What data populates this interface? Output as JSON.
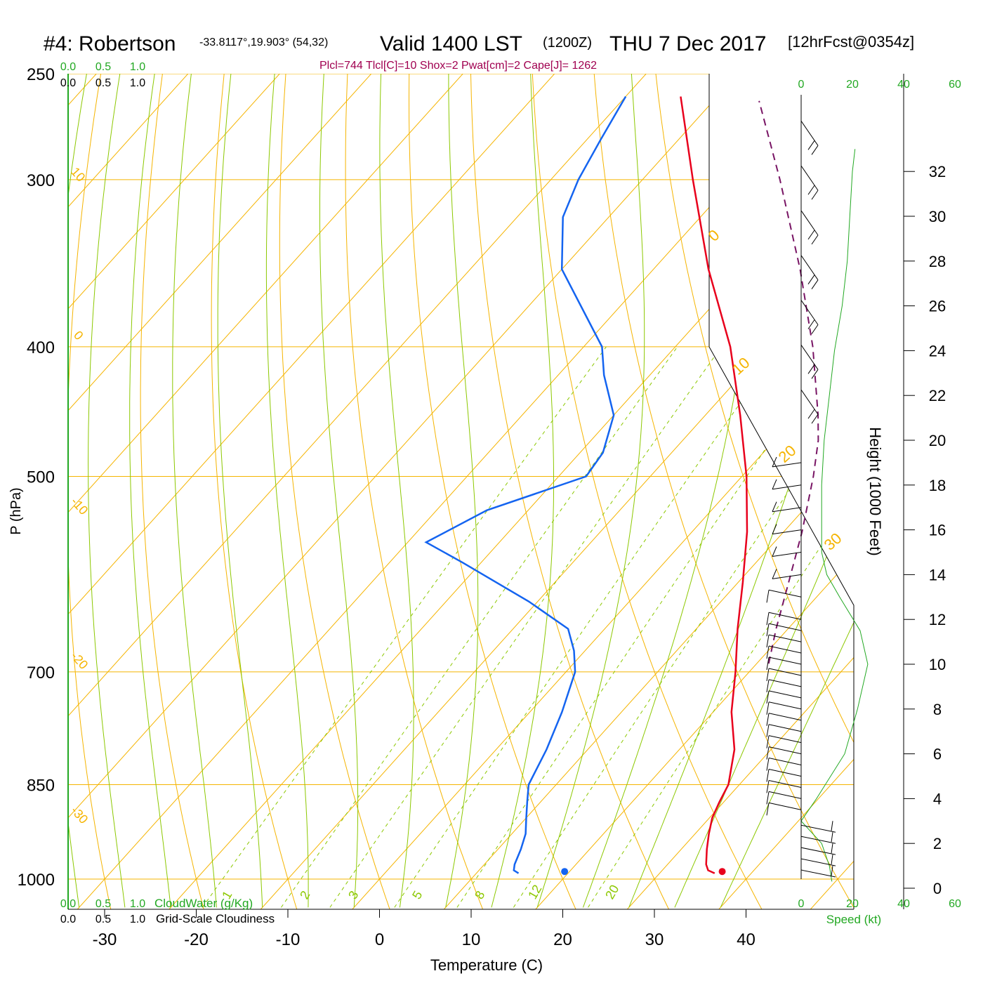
{
  "header": {
    "station": "#4: Robertson",
    "coords": "-33.8117°,19.903° (54,32)",
    "valid": "Valid 1400 LST",
    "zulu": "(1200Z)",
    "date": "THU 7 Dec 2017",
    "forecast": "[12hrFcst@0354z]",
    "indices": "Plcl=744 Tlcl[C]=10 Shox=2 Pwat[cm]=2 Cape[J]= 1262"
  },
  "chart_data": {
    "type": "skewt",
    "xlabel": "Temperature (C)",
    "ylabel": "P (hPa)",
    "right_label": "Height (1000 Feet)",
    "speed_label": "Speed (kt)",
    "cloudwater_label": "CloudWater (g/Kg)",
    "cloudiness_label": "Grid-Scale Cloudiness",
    "x_ticks": [
      -30,
      -20,
      -10,
      0,
      10,
      20,
      30,
      40
    ],
    "pressure_ticks": [
      250,
      300,
      400,
      500,
      700,
      850,
      1000
    ],
    "height_ticks": [
      0,
      2,
      4,
      6,
      8,
      10,
      12,
      14,
      16,
      18,
      20,
      22,
      24,
      26,
      28,
      30,
      32
    ],
    "speed_ticks": [
      0,
      20,
      40,
      60
    ],
    "cloud_ticks": [
      "0.0",
      "0.5",
      "1.0"
    ],
    "temperature_range_c": [
      -34,
      36
    ],
    "pressure_range_hpa": [
      1050,
      250
    ],
    "isotherm_labels": [
      40,
      30,
      20,
      10,
      0,
      -10,
      -20,
      -30
    ],
    "dry_adiabat_labels": [
      "0",
      "10",
      "20",
      "30",
      "-10",
      "-20",
      "-30",
      "10",
      "0"
    ],
    "mixing_ratio_labels": [
      "1",
      "2",
      "3",
      "5",
      "8",
      "12",
      "20"
    ],
    "temperature_profile": [
      {
        "p": 990,
        "t": 36.0
      },
      {
        "p": 985,
        "t": 35.0
      },
      {
        "p": 975,
        "t": 34.2
      },
      {
        "p": 950,
        "t": 32.8
      },
      {
        "p": 925,
        "t": 31.5
      },
      {
        "p": 900,
        "t": 30.3
      },
      {
        "p": 875,
        "t": 29.5
      },
      {
        "p": 850,
        "t": 28.8
      },
      {
        "p": 800,
        "t": 26.0
      },
      {
        "p": 750,
        "t": 22.0
      },
      {
        "p": 700,
        "t": 18.5
      },
      {
        "p": 650,
        "t": 14.5
      },
      {
        "p": 600,
        "t": 10.5
      },
      {
        "p": 550,
        "t": 6.0
      },
      {
        "p": 500,
        "t": 0.5
      },
      {
        "p": 450,
        "t": -6.2
      },
      {
        "p": 400,
        "t": -14.0
      },
      {
        "p": 350,
        "t": -24.0
      },
      {
        "p": 300,
        "t": -34.5
      },
      {
        "p": 260,
        "t": -44.0
      }
    ],
    "dewpoint_profile": [
      {
        "p": 990,
        "t": 14.6
      },
      {
        "p": 985,
        "t": 13.8
      },
      {
        "p": 975,
        "t": 13.3
      },
      {
        "p": 950,
        "t": 12.5
      },
      {
        "p": 925,
        "t": 11.5
      },
      {
        "p": 900,
        "t": 10.0
      },
      {
        "p": 875,
        "t": 8.5
      },
      {
        "p": 850,
        "t": 7.0
      },
      {
        "p": 800,
        "t": 5.5
      },
      {
        "p": 750,
        "t": 3.5
      },
      {
        "p": 700,
        "t": 1.0
      },
      {
        "p": 675,
        "t": -1.2
      },
      {
        "p": 650,
        "t": -4.0
      },
      {
        "p": 620,
        "t": -11.0
      },
      {
        "p": 580,
        "t": -22.0
      },
      {
        "p": 560,
        "t": -28.0
      },
      {
        "p": 530,
        "t": -24.5
      },
      {
        "p": 500,
        "t": -17.0
      },
      {
        "p": 480,
        "t": -17.5
      },
      {
        "p": 450,
        "t": -20.0
      },
      {
        "p": 420,
        "t": -25.0
      },
      {
        "p": 400,
        "t": -28.0
      },
      {
        "p": 350,
        "t": -40.0
      },
      {
        "p": 320,
        "t": -45.0
      },
      {
        "p": 300,
        "t": -47.0
      },
      {
        "p": 280,
        "t": -48.5
      },
      {
        "p": 260,
        "t": -50.0
      }
    ],
    "parcel_profile": [
      {
        "p": 690,
        "t": 21.3
      },
      {
        "p": 650,
        "t": 18.7
      },
      {
        "p": 600,
        "t": 15.5
      },
      {
        "p": 550,
        "t": 12.0
      },
      {
        "p": 500,
        "t": 7.8
      },
      {
        "p": 470,
        "t": 4.8
      },
      {
        "p": 450,
        "t": 2.3
      },
      {
        "p": 400,
        "t": -5.0
      },
      {
        "p": 350,
        "t": -14.0
      },
      {
        "p": 300,
        "t": -25.0
      },
      {
        "p": 262,
        "t": -35.0
      }
    ],
    "surface_temperature_c": 37.0,
    "surface_dewpoint_c": 19.8,
    "surface_pressure_hpa": 993,
    "wind_speed_profile": [
      {
        "h": 0.3,
        "s": 12
      },
      {
        "h": 1.0,
        "s": 11
      },
      {
        "h": 2.0,
        "s": 8
      },
      {
        "h": 3.0,
        "s": 0
      },
      {
        "h": 4.0,
        "s": 6
      },
      {
        "h": 6.0,
        "s": 17
      },
      {
        "h": 8.0,
        "s": 22
      },
      {
        "h": 10.0,
        "s": 26
      },
      {
        "h": 11.5,
        "s": 23
      },
      {
        "h": 13.0,
        "s": 15
      },
      {
        "h": 14.0,
        "s": 10
      },
      {
        "h": 15.0,
        "s": 8
      },
      {
        "h": 16.0,
        "s": 8
      },
      {
        "h": 18.0,
        "s": 8
      },
      {
        "h": 20.0,
        "s": 9
      },
      {
        "h": 22.0,
        "s": 11
      },
      {
        "h": 24.0,
        "s": 13
      },
      {
        "h": 26.0,
        "s": 16
      },
      {
        "h": 28.0,
        "s": 18
      },
      {
        "h": 30.0,
        "s": 19
      },
      {
        "h": 32.0,
        "s": 20
      },
      {
        "h": 33.0,
        "s": 21
      }
    ],
    "wind_barb_heights_kft": [
      0.5,
      1.0,
      1.5,
      2.0,
      2.5,
      3.5,
      4.0,
      4.5,
      5.0,
      5.5,
      6.0,
      6.5,
      7.0,
      7.5,
      8.0,
      8.5,
      9.0,
      9.5,
      10.0,
      10.5,
      11.0,
      11.5,
      12.0,
      13.0,
      14.0,
      15.0,
      16.0,
      17.0,
      18.0,
      19.0,
      21.0,
      23.0,
      25.0,
      27.0,
      29.0,
      31.0,
      33.0
    ],
    "grid": true
  },
  "colors": {
    "isotherm": "#f5b400",
    "isobar": "#f5b400",
    "dry_adiabat": "#f5b400",
    "moist_adiabat": "#8cc800",
    "mixing_ratio": "#8cc800",
    "temperature": "#e8001c",
    "dewpoint": "#1464f0",
    "parcel": "#781464",
    "accent_green": "#22a822",
    "indices": "#a00050"
  }
}
